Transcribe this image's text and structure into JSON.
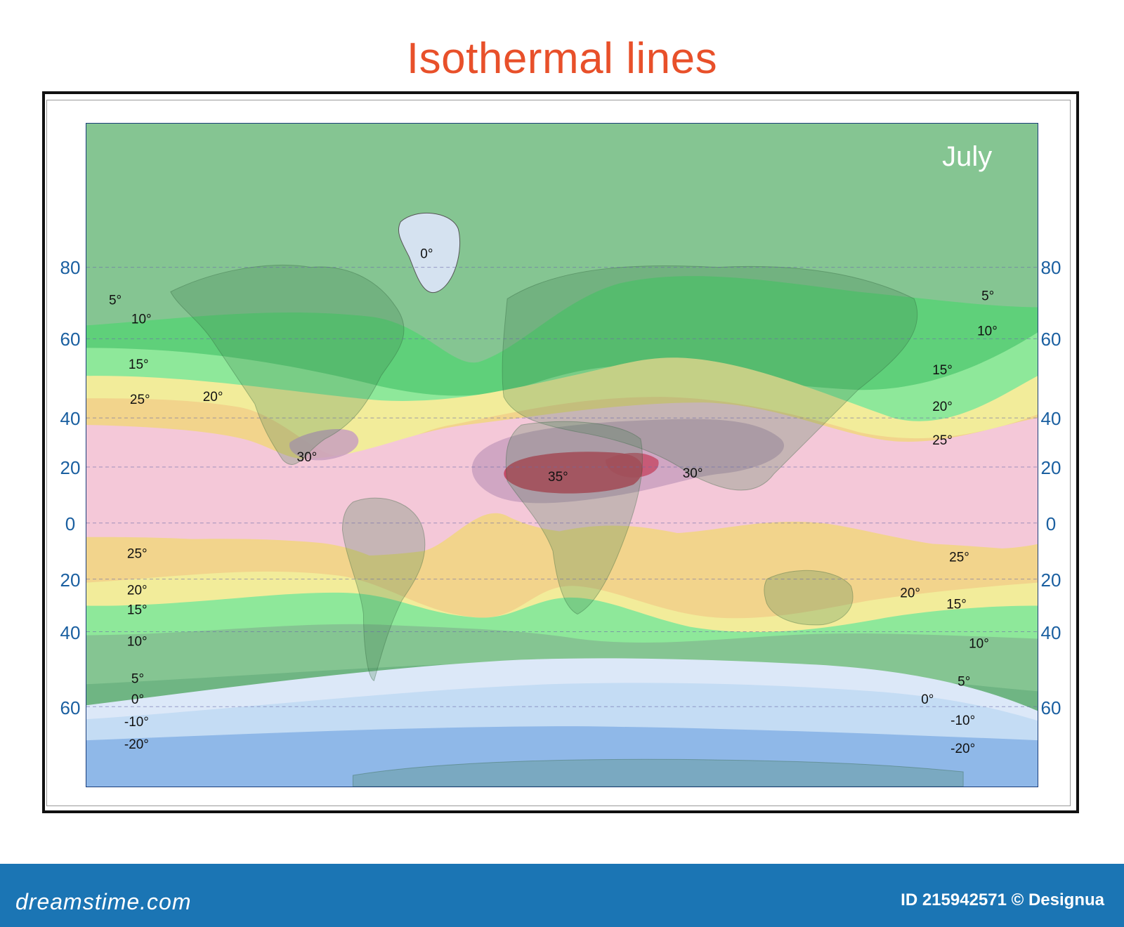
{
  "title": "Isothermal lines",
  "map": {
    "month": "July",
    "latitude_labels_left": [
      "80",
      "60",
      "40",
      "20",
      "0",
      "20",
      "40",
      "60"
    ],
    "latitude_labels_right": [
      "80",
      "60",
      "40",
      "20",
      "0",
      "20",
      "40",
      "60"
    ],
    "isotherm_labels_left": [
      "5°",
      "10°",
      "15°",
      "25°",
      "20°",
      "30°",
      "25°",
      "20°",
      "15°",
      "10°",
      "5°",
      "0°",
      "-10°",
      "-20°"
    ],
    "isotherm_labels_center": [
      "0°",
      "35°",
      "30°"
    ],
    "isotherm_labels_right": [
      "5°",
      "10°",
      "15°",
      "20°",
      "25°",
      "25°",
      "20°",
      "15°",
      "10°",
      "5°",
      "0°",
      "-10°",
      "-20°"
    ],
    "zone_colors": {
      "below_0": "#c8d9f0",
      "0_to_5": "#b9d3ef",
      "5_to_10": "#85c592",
      "10_to_15": "#5fd07a",
      "15_to_20": "#8ee89a",
      "20_to_25": "#f2ec9a",
      "25_to_30": "#f2d48c",
      "30_to_35": "#f4c8d8",
      "35_plus": "#c9809a",
      "hot_core": "#c4405e",
      "greenland_ice": "#d5e2f0",
      "antarctic_deep": "#8fb8e8"
    }
  },
  "footer": {
    "brand": "dreamstime.com",
    "id": "ID 215942571 © Designua"
  }
}
